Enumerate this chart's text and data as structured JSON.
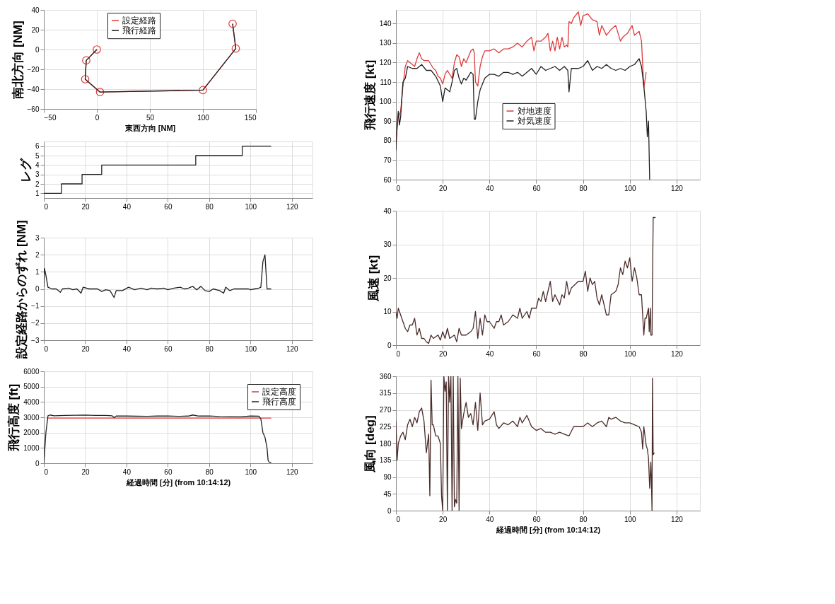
{
  "chart_data": [
    {
      "type": "line",
      "xlabel": "東西方向 [NM]",
      "ylabel": "南北方向 [NM]",
      "xlim": [
        -50,
        150
      ],
      "xticks": [
        -50,
        0,
        50,
        100,
        150
      ],
      "ylim": [
        -60,
        40
      ],
      "yticks": [
        -60,
        -40,
        -20,
        0,
        20,
        40
      ],
      "grid": true,
      "legend": "top",
      "series": [
        {
          "name": "設定経路",
          "color": "#e03a3a",
          "marker": "circle",
          "x": [
            0,
            -10,
            -11,
            3,
            100,
            131,
            128
          ],
          "values": [
            0,
            -11,
            -30,
            -43,
            -41,
            1,
            26
          ]
        },
        {
          "name": "飛行経路",
          "color": "#222222",
          "x": [
            0,
            -10,
            -11,
            3,
            100,
            131,
            128
          ],
          "values": [
            0,
            -11,
            -30,
            -43,
            -41,
            1,
            26
          ]
        }
      ]
    },
    {
      "type": "step",
      "ylabel": "レグ",
      "xlim": [
        0,
        130
      ],
      "xticks": [
        0,
        20,
        40,
        60,
        80,
        100,
        120
      ],
      "ylim": [
        0.5,
        6.5
      ],
      "yticks": [
        1,
        2,
        3,
        4,
        5,
        6
      ],
      "grid": true,
      "series": [
        {
          "color": "#222222",
          "x": [
            0,
            8.5,
            18.5,
            28,
            73.5,
            96,
            110
          ],
          "values": [
            1,
            2,
            3,
            4,
            5,
            6,
            6
          ]
        }
      ]
    },
    {
      "type": "line",
      "ylabel": "設定経路からのずれ [NM]",
      "xlim": [
        0,
        130
      ],
      "xticks": [
        0,
        20,
        40,
        60,
        80,
        100,
        120
      ],
      "ylim": [
        -3,
        3
      ],
      "yticks": [
        -3,
        -2,
        -1,
        0,
        1,
        2,
        3
      ],
      "grid": true,
      "series": [
        {
          "color": "#222222",
          "x": [
            0,
            0.3,
            1,
            2,
            4,
            6,
            8,
            9,
            12,
            14,
            16,
            18,
            19,
            22,
            24,
            26,
            28,
            30,
            32,
            34,
            35,
            38,
            41,
            44,
            47,
            50,
            52,
            55,
            58,
            60,
            63,
            66,
            68,
            70,
            72,
            74,
            76,
            78,
            80,
            82,
            85,
            87,
            88,
            90,
            92,
            95,
            99,
            100,
            102,
            104,
            105,
            106,
            107,
            108,
            110
          ],
          "values": [
            0.1,
            1.2,
            0.8,
            0.1,
            0,
            0,
            -0.2,
            0,
            0.05,
            -0.05,
            0,
            -0.25,
            0.1,
            0,
            0,
            0,
            -0.15,
            -0.05,
            -0.1,
            -0.5,
            -0.1,
            -0.1,
            0.1,
            -0.05,
            0.05,
            -0.05,
            0.05,
            0,
            0.05,
            -0.05,
            0.05,
            0.1,
            0,
            0.05,
            0.15,
            -0.05,
            0.15,
            -0.1,
            -0.15,
            0,
            -0.1,
            -0.25,
            0.1,
            -0.1,
            0,
            0,
            0,
            -0.05,
            0,
            0.05,
            0.1,
            1.6,
            2,
            0,
            0
          ]
        }
      ]
    },
    {
      "type": "line",
      "xlabel": "経過時間 [分] (from 10:14:12)",
      "ylabel": "飛行高度 [ft]",
      "xlim": [
        0,
        130
      ],
      "xticks": [
        0,
        20,
        40,
        60,
        80,
        100,
        120
      ],
      "ylim": [
        0,
        6000
      ],
      "yticks": [
        0,
        1000,
        2000,
        3000,
        4000,
        5000,
        6000
      ],
      "grid": true,
      "legend": "top right",
      "series": [
        {
          "name": "設定高度",
          "color": "#e03a3a",
          "x": [
            1.5,
            110
          ],
          "values": [
            2950,
            2950
          ]
        },
        {
          "name": "飛行高度",
          "color": "#222222",
          "x": [
            0,
            1,
            2,
            3,
            5,
            10,
            15,
            20,
            25,
            30,
            33,
            34,
            35,
            40,
            45,
            50,
            55,
            60,
            65,
            70,
            72,
            75,
            80,
            85,
            90,
            95,
            100,
            104,
            105,
            106,
            107,
            108,
            108.5,
            109,
            110
          ],
          "values": [
            0,
            2000,
            3100,
            3150,
            3100,
            3120,
            3130,
            3140,
            3120,
            3120,
            3100,
            2980,
            3080,
            3080,
            3070,
            3060,
            3080,
            3090,
            3060,
            3080,
            3150,
            3080,
            3090,
            3050,
            3040,
            3030,
            3080,
            3070,
            2900,
            2000,
            1700,
            1000,
            200,
            80,
            50
          ]
        }
      ]
    },
    {
      "type": "line",
      "ylabel": "飛行速度 [kt]",
      "xlim": [
        0,
        130
      ],
      "xticks": [
        0,
        20,
        40,
        60,
        80,
        100,
        120
      ],
      "ylim": [
        60,
        147
      ],
      "yticks": [
        60,
        70,
        80,
        90,
        100,
        110,
        120,
        130,
        140
      ],
      "grid": true,
      "legend": "bottom",
      "series": [
        {
          "name": "対地速度",
          "color": "#e03a3a",
          "x": [
            0,
            1,
            2,
            3,
            4,
            5,
            7,
            8,
            9,
            10,
            11,
            12,
            14,
            15,
            16,
            17,
            18,
            19,
            20,
            21,
            22,
            23,
            24,
            25,
            26,
            27,
            28,
            29,
            30,
            31,
            32,
            33,
            33.5,
            34,
            35,
            36,
            37,
            38,
            40,
            42,
            44,
            46,
            48,
            50,
            52,
            54,
            56,
            58,
            59,
            60,
            62,
            64,
            65,
            66,
            67,
            68,
            69,
            70,
            71,
            72,
            73,
            73.5,
            74,
            75,
            76,
            78,
            79,
            80,
            82,
            84,
            86,
            87,
            88,
            90,
            92,
            94,
            96,
            97,
            99,
            101,
            102,
            104,
            105,
            106,
            107
          ],
          "values": [
            80,
            92,
            95,
            108,
            118,
            121,
            119,
            118,
            122,
            125,
            122,
            121,
            121,
            119,
            117,
            116,
            113,
            112,
            109,
            114,
            116,
            114,
            112,
            120,
            124,
            123,
            118,
            122,
            120,
            123,
            126,
            127,
            125,
            110,
            108,
            118,
            123,
            126,
            126,
            127,
            125,
            127,
            127,
            128,
            130,
            128,
            131,
            133,
            126,
            131,
            131,
            133,
            135,
            126,
            131,
            126,
            133,
            127,
            133,
            128,
            129,
            128,
            141,
            140,
            143,
            146,
            139,
            144,
            145,
            142,
            141,
            134,
            139,
            134,
            137,
            139,
            131,
            133,
            135,
            139,
            134,
            136,
            131,
            107,
            115
          ]
        },
        {
          "name": "対気速度",
          "color": "#222222",
          "x": [
            0,
            0.5,
            1,
            1.5,
            2,
            3,
            4,
            5,
            7,
            9,
            11,
            13,
            15,
            17,
            19,
            20,
            21,
            22,
            23,
            24,
            25,
            26,
            27,
            28,
            29,
            30,
            31,
            32,
            33,
            33.5,
            34,
            35,
            36,
            38,
            40,
            42,
            44,
            46,
            48,
            50,
            52,
            54,
            56,
            58,
            60,
            62,
            64,
            66,
            68,
            70,
            72,
            73.5,
            74,
            75,
            78,
            80,
            82,
            84,
            86,
            88,
            90,
            92,
            94,
            96,
            98,
            100,
            102,
            104,
            105,
            106,
            107,
            107.5,
            108,
            108.5
          ],
          "values": [
            75,
            88,
            95,
            88,
            92,
            110,
            112,
            118,
            117,
            117,
            119,
            116,
            116,
            113,
            108,
            100,
            107,
            106,
            105,
            110,
            116,
            117,
            112,
            109,
            112,
            111,
            113,
            115,
            114,
            91,
            91,
            100,
            106,
            112,
            114,
            114,
            113,
            115,
            115,
            114,
            115,
            113,
            115,
            117,
            114,
            118,
            116,
            117,
            118,
            116,
            118,
            116,
            105,
            117,
            117,
            118,
            121,
            116,
            118,
            117,
            119,
            117,
            116,
            117,
            116,
            118,
            119,
            122,
            118,
            108,
            95,
            82,
            90,
            60
          ]
        }
      ]
    },
    {
      "type": "line",
      "ylabel": "風速 [kt]",
      "xlim": [
        0,
        130
      ],
      "xticks": [
        0,
        20,
        40,
        60,
        80,
        100,
        120
      ],
      "ylim": [
        0,
        40
      ],
      "yticks": [
        0,
        10,
        20,
        30,
        40
      ],
      "grid": true,
      "series": [
        {
          "color": "#4a2c2a",
          "x": [
            0,
            0.5,
            1,
            2,
            3,
            4,
            5,
            6,
            7,
            8,
            9,
            10,
            11,
            12,
            13,
            14,
            15,
            16,
            18,
            19,
            20,
            21,
            22,
            23,
            25,
            26,
            27,
            28,
            30,
            32,
            33,
            34,
            35,
            36,
            37,
            38,
            39,
            40,
            42,
            43,
            44,
            45,
            46,
            48,
            50,
            52,
            53,
            54,
            56,
            57,
            58,
            60,
            61,
            62,
            63,
            64,
            65,
            66,
            67,
            68,
            70,
            71,
            72,
            73,
            74,
            75,
            78,
            80,
            81,
            82,
            83,
            84,
            85,
            86,
            87,
            88,
            89,
            90,
            91,
            92,
            94,
            95,
            96,
            97,
            98,
            99,
            100,
            101,
            102,
            103,
            104,
            105,
            106,
            106.5,
            107,
            108,
            108.3,
            108.8,
            109,
            109.5,
            110,
            111
          ],
          "values": [
            10,
            8,
            11,
            9,
            7,
            5,
            4,
            6,
            6,
            8,
            3,
            5,
            2,
            2,
            1,
            0.5,
            3,
            2,
            3,
            1.5,
            4,
            2,
            5,
            2,
            3,
            1,
            5,
            3,
            3,
            4,
            5,
            10,
            2,
            8,
            3,
            9,
            7,
            7,
            5,
            7,
            7,
            9,
            6,
            7,
            9,
            8,
            11,
            8,
            10,
            8,
            11,
            11,
            14,
            13,
            16,
            13,
            16,
            19,
            13,
            15,
            12,
            15,
            14,
            19,
            15,
            17,
            19,
            19,
            22,
            16,
            20,
            18,
            19,
            14,
            12,
            15,
            12,
            9,
            9,
            15,
            16,
            18,
            23,
            21,
            25,
            23,
            26,
            19,
            23,
            20,
            15,
            15,
            3,
            8,
            8,
            11,
            4,
            11,
            3,
            3,
            38,
            38
          ]
        }
      ]
    },
    {
      "type": "line",
      "xlabel": "経過時間 [分] (from 10:14:12)",
      "ylabel": "風向 [deg]",
      "xlim": [
        0,
        130
      ],
      "xticks": [
        0,
        20,
        40,
        60,
        80,
        100,
        120
      ],
      "ylim": [
        0,
        360
      ],
      "yticks": [
        0,
        45,
        90,
        135,
        180,
        225,
        270,
        315,
        360
      ],
      "grid": true,
      "series": [
        {
          "color": "#4a2c2a",
          "x": [
            0,
            0.5,
            1,
            2,
            3,
            4,
            5,
            6,
            7,
            8,
            9,
            10,
            11,
            12,
            13,
            13.5,
            14,
            14.5,
            15,
            15.5,
            16,
            17,
            18,
            19,
            19.5,
            20,
            20.5,
            21,
            21.5,
            22,
            22.5,
            23,
            23.5,
            24,
            24.5,
            25,
            25.5,
            26,
            26.5,
            27,
            27.5,
            28,
            29,
            30,
            31,
            32,
            33,
            34,
            35,
            36,
            37,
            38,
            40,
            42,
            43,
            44,
            46,
            48,
            50,
            52,
            53,
            54,
            56,
            58,
            60,
            62,
            64,
            66,
            68,
            70,
            72,
            74,
            76,
            78,
            80,
            82,
            84,
            86,
            88,
            90,
            91,
            92,
            94,
            96,
            98,
            100,
            102,
            104,
            105,
            105.5,
            106,
            107,
            107.5,
            108,
            108.5,
            109,
            109.3,
            109.5,
            109.7,
            110,
            110.5
          ],
          "values": [
            240,
            135,
            180,
            200,
            210,
            190,
            230,
            245,
            225,
            250,
            235,
            265,
            275,
            240,
            155,
            180,
            205,
            40,
            350,
            230,
            230,
            200,
            200,
            180,
            40,
            0,
            360,
            320,
            345,
            0,
            360,
            290,
            360,
            0,
            360,
            10,
            30,
            20,
            360,
            0,
            355,
            220,
            260,
            290,
            250,
            260,
            230,
            290,
            215,
            315,
            230,
            240,
            245,
            265,
            230,
            220,
            235,
            230,
            240,
            225,
            250,
            235,
            255,
            225,
            215,
            220,
            210,
            210,
            205,
            210,
            205,
            200,
            225,
            225,
            225,
            235,
            225,
            235,
            240,
            225,
            250,
            245,
            250,
            240,
            235,
            235,
            230,
            225,
            210,
            165,
            225,
            175,
            165,
            140,
            60,
            130,
            60,
            0,
            355,
            150,
            155
          ]
        }
      ]
    }
  ]
}
